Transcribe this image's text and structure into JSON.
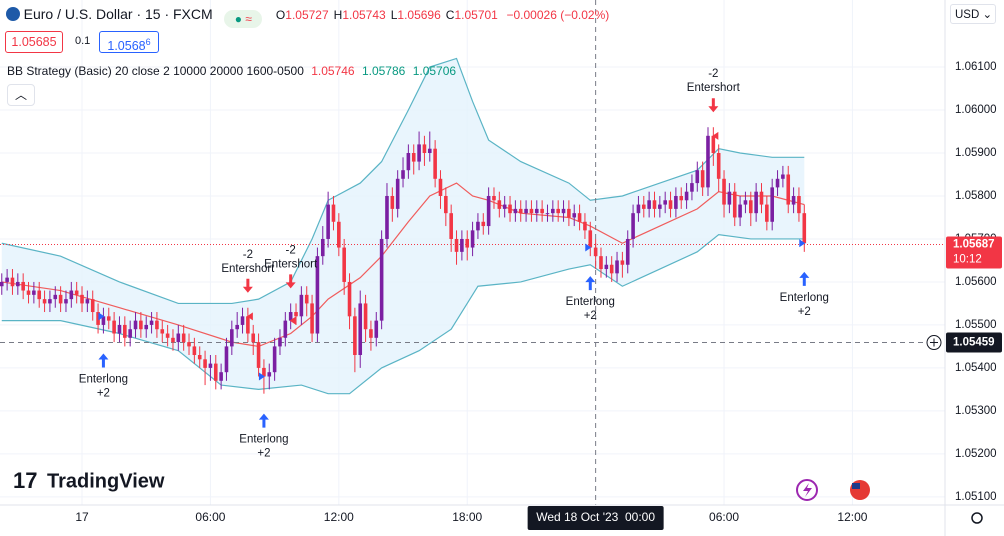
{
  "header": {
    "symbol": "Euro / U.S. Dollar · 15 · FXCM",
    "ohlc": [
      {
        "label": "O",
        "value": "1.05727"
      },
      {
        "label": "H",
        "value": "1.05743"
      },
      {
        "label": "L",
        "value": "1.05696"
      },
      {
        "label": "C",
        "value": "1.05701"
      }
    ],
    "change": "−0.00026 (−0.02%)",
    "bid": "1.05685",
    "spread": "0.1",
    "ask": "1.0568",
    "ask_pip": "6",
    "currency": "USD",
    "indicator": {
      "name": "BB Strategy (Basic) 20 close 2 10000 20000 1600-0500",
      "values": [
        "1.05746",
        "1.05786",
        "1.05706"
      ]
    },
    "logo": "TradingView"
  },
  "chart_data": {
    "type": "candlestick",
    "up_color": "#7b1fa2",
    "down_color": "#f23645",
    "xlim": [
      -0.33,
      176.3
    ],
    "ylim": [
      1.05081,
      1.06256
    ],
    "xticks": [
      {
        "value": 15,
        "label": "17"
      },
      {
        "value": 39,
        "label": "06:00"
      },
      {
        "value": 63,
        "label": "12:00"
      },
      {
        "value": 87,
        "label": "18:00"
      },
      {
        "value": 135,
        "label": "06:00"
      },
      {
        "value": 159,
        "label": "12:00"
      }
    ],
    "yticks": [
      {
        "value": 1.051,
        "label": "1.05100"
      },
      {
        "value": 1.052,
        "label": "1.05200"
      },
      {
        "value": 1.053,
        "label": "1.05300"
      },
      {
        "value": 1.054,
        "label": "1.05400"
      },
      {
        "value": 1.055,
        "label": "1.05500"
      },
      {
        "value": 1.056,
        "label": "1.05600"
      },
      {
        "value": 1.057,
        "label": "1.05700"
      },
      {
        "value": 1.058,
        "label": "1.05800"
      },
      {
        "value": 1.059,
        "label": "1.05900"
      },
      {
        "value": 1.06,
        "label": "1.06000"
      },
      {
        "value": 1.061,
        "label": "1.06100"
      }
    ],
    "grid": true,
    "candles": [
      [
        1.0559,
        1.0562,
        1.0557,
        1.056
      ],
      [
        1.056,
        1.0563,
        1.0558,
        1.0561
      ],
      [
        1.0561,
        1.0563,
        1.0557,
        1.0559
      ],
      [
        1.0559,
        1.0562,
        1.0557,
        1.056
      ],
      [
        1.056,
        1.0562,
        1.0556,
        1.0558
      ],
      [
        1.0558,
        1.056,
        1.0555,
        1.0557
      ],
      [
        1.0557,
        1.056,
        1.0555,
        1.0558
      ],
      [
        1.0558,
        1.056,
        1.0554,
        1.0556
      ],
      [
        1.0556,
        1.0558,
        1.0553,
        1.0555
      ],
      [
        1.0555,
        1.0558,
        1.0553,
        1.0556
      ],
      [
        1.0556,
        1.0559,
        1.0554,
        1.0557
      ],
      [
        1.0557,
        1.0559,
        1.0553,
        1.0555
      ],
      [
        1.0555,
        1.0558,
        1.0553,
        1.0556
      ],
      [
        1.0556,
        1.056,
        1.0554,
        1.0558
      ],
      [
        1.0558,
        1.056,
        1.0555,
        1.0557
      ],
      [
        1.0557,
        1.0559,
        1.0553,
        1.0555
      ],
      [
        1.0555,
        1.0558,
        1.0553,
        1.0556
      ],
      [
        1.0556,
        1.0558,
        1.0551,
        1.0553
      ],
      [
        1.0553,
        1.0555,
        1.0548,
        1.055
      ],
      [
        1.055,
        1.0554,
        1.0548,
        1.0552
      ],
      [
        1.0552,
        1.0554,
        1.0549,
        1.0551
      ],
      [
        1.0551,
        1.0553,
        1.0546,
        1.0548
      ],
      [
        1.0548,
        1.0552,
        1.0546,
        1.055
      ],
      [
        1.055,
        1.0552,
        1.0545,
        1.0547
      ],
      [
        1.0547,
        1.0551,
        1.0545,
        1.0549
      ],
      [
        1.0549,
        1.0553,
        1.0547,
        1.0551
      ],
      [
        1.0551,
        1.0553,
        1.0547,
        1.0549
      ],
      [
        1.0549,
        1.0552,
        1.0547,
        1.055
      ],
      [
        1.055,
        1.0553,
        1.0548,
        1.0551
      ],
      [
        1.0551,
        1.0553,
        1.0547,
        1.0549
      ],
      [
        1.0549,
        1.0551,
        1.0546,
        1.0548
      ],
      [
        1.0548,
        1.055,
        1.0545,
        1.0547
      ],
      [
        1.0547,
        1.0549,
        1.0544,
        1.0546
      ],
      [
        1.0546,
        1.055,
        1.0544,
        1.0548
      ],
      [
        1.0548,
        1.055,
        1.0544,
        1.0546
      ],
      [
        1.0546,
        1.0548,
        1.0543,
        1.0545
      ],
      [
        1.0545,
        1.0547,
        1.0541,
        1.0543
      ],
      [
        1.0543,
        1.0545,
        1.054,
        1.0542
      ],
      [
        1.0542,
        1.0544,
        1.0536,
        1.054
      ],
      [
        1.054,
        1.0543,
        1.0537,
        1.0541
      ],
      [
        1.0541,
        1.0543,
        1.0535,
        1.0537
      ],
      [
        1.0537,
        1.0541,
        1.0535,
        1.0539
      ],
      [
        1.0539,
        1.0547,
        1.0537,
        1.0545
      ],
      [
        1.0545,
        1.0551,
        1.0543,
        1.0549
      ],
      [
        1.0549,
        1.0553,
        1.0547,
        1.055
      ],
      [
        1.055,
        1.0554,
        1.0548,
        1.0552
      ],
      [
        1.0552,
        1.0554,
        1.0546,
        1.0548
      ],
      [
        1.0548,
        1.055,
        1.0543,
        1.0546
      ],
      [
        1.0546,
        1.0548,
        1.0538,
        1.054
      ],
      [
        1.054,
        1.0542,
        1.0534,
        1.0538
      ],
      [
        1.0538,
        1.0541,
        1.0535,
        1.0539
      ],
      [
        1.0539,
        1.0547,
        1.0537,
        1.0545
      ],
      [
        1.0545,
        1.0549,
        1.0543,
        1.0547
      ],
      [
        1.0547,
        1.0553,
        1.0545,
        1.0551
      ],
      [
        1.0551,
        1.0555,
        1.0549,
        1.0553
      ],
      [
        1.0553,
        1.0555,
        1.055,
        1.0552
      ],
      [
        1.0552,
        1.0559,
        1.055,
        1.0557
      ],
      [
        1.0557,
        1.0559,
        1.0552,
        1.0555
      ],
      [
        1.0555,
        1.0557,
        1.0546,
        1.0548
      ],
      [
        1.0548,
        1.0568,
        1.0546,
        1.0566
      ],
      [
        1.0566,
        1.0573,
        1.0564,
        1.057
      ],
      [
        1.057,
        1.0581,
        1.0568,
        1.0578
      ],
      [
        1.0578,
        1.058,
        1.0572,
        1.0574
      ],
      [
        1.0574,
        1.0576,
        1.0566,
        1.0568
      ],
      [
        1.0568,
        1.057,
        1.0557,
        1.056
      ],
      [
        1.056,
        1.0562,
        1.0549,
        1.0552
      ],
      [
        1.0552,
        1.0554,
        1.0539,
        1.0543
      ],
      [
        1.0543,
        1.0558,
        1.054,
        1.0555
      ],
      [
        1.0555,
        1.0557,
        1.0546,
        1.0549
      ],
      [
        1.0549,
        1.0551,
        1.0544,
        1.0547
      ],
      [
        1.0547,
        1.0553,
        1.0545,
        1.0551
      ],
      [
        1.0551,
        1.0572,
        1.0549,
        1.057
      ],
      [
        1.057,
        1.0583,
        1.0568,
        1.058
      ],
      [
        1.058,
        1.0582,
        1.0574,
        1.0577
      ],
      [
        1.0577,
        1.0586,
        1.0575,
        1.0584
      ],
      [
        1.0584,
        1.0589,
        1.0582,
        1.0586
      ],
      [
        1.0586,
        1.0592,
        1.0584,
        1.059
      ],
      [
        1.059,
        1.0592,
        1.0585,
        1.0588
      ],
      [
        1.0588,
        1.0595,
        1.0586,
        1.0592
      ],
      [
        1.0592,
        1.0594,
        1.0587,
        1.059
      ],
      [
        1.059,
        1.0595,
        1.0588,
        1.0591
      ],
      [
        1.0591,
        1.0593,
        1.0582,
        1.0584
      ],
      [
        1.0584,
        1.0586,
        1.0577,
        1.058
      ],
      [
        1.058,
        1.0582,
        1.0573,
        1.0576
      ],
      [
        1.0576,
        1.0578,
        1.0567,
        1.057
      ],
      [
        1.057,
        1.0572,
        1.0564,
        1.0567
      ],
      [
        1.0567,
        1.0572,
        1.0565,
        1.057
      ],
      [
        1.057,
        1.0572,
        1.0565,
        1.0568
      ],
      [
        1.0568,
        1.0574,
        1.0566,
        1.0572
      ],
      [
        1.0572,
        1.0576,
        1.057,
        1.0574
      ],
      [
        1.0574,
        1.0576,
        1.0571,
        1.0573
      ],
      [
        1.0573,
        1.0582,
        1.0571,
        1.058
      ],
      [
        1.058,
        1.0582,
        1.0577,
        1.0579
      ],
      [
        1.0579,
        1.0581,
        1.0575,
        1.0577
      ],
      [
        1.0577,
        1.058,
        1.0575,
        1.0578
      ],
      [
        1.0578,
        1.058,
        1.0574,
        1.0576
      ],
      [
        1.0576,
        1.0579,
        1.0574,
        1.0577
      ],
      [
        1.0577,
        1.0579,
        1.0574,
        1.0576
      ],
      [
        1.0576,
        1.0579,
        1.0574,
        1.0577
      ],
      [
        1.0577,
        1.0579,
        1.0574,
        1.0576
      ],
      [
        1.0576,
        1.0579,
        1.0574,
        1.0577
      ],
      [
        1.0577,
        1.0579,
        1.0574,
        1.0576
      ],
      [
        1.0576,
        1.0578,
        1.0574,
        1.0576
      ],
      [
        1.0576,
        1.0579,
        1.0574,
        1.0577
      ],
      [
        1.0577,
        1.0579,
        1.0574,
        1.0576
      ],
      [
        1.0576,
        1.0579,
        1.0574,
        1.0577
      ],
      [
        1.0577,
        1.0579,
        1.0573,
        1.0575
      ],
      [
        1.0575,
        1.0578,
        1.0573,
        1.0576
      ],
      [
        1.0576,
        1.0578,
        1.0572,
        1.0574
      ],
      [
        1.0574,
        1.0576,
        1.057,
        1.0572
      ],
      [
        1.0572,
        1.0574,
        1.0566,
        1.0568
      ],
      [
        1.0568,
        1.057,
        1.0563,
        1.0566
      ],
      [
        1.0566,
        1.0568,
        1.0561,
        1.0563
      ],
      [
        1.0563,
        1.0566,
        1.0561,
        1.0564
      ],
      [
        1.0564,
        1.0566,
        1.056,
        1.0562
      ],
      [
        1.0562,
        1.0567,
        1.056,
        1.0565
      ],
      [
        1.0565,
        1.0567,
        1.0561,
        1.0564
      ],
      [
        1.0564,
        1.0572,
        1.0562,
        1.057
      ],
      [
        1.057,
        1.0578,
        1.0568,
        1.0576
      ],
      [
        1.0576,
        1.058,
        1.0574,
        1.0578
      ],
      [
        1.0578,
        1.058,
        1.0575,
        1.0577
      ],
      [
        1.0577,
        1.0581,
        1.0575,
        1.0579
      ],
      [
        1.0579,
        1.0581,
        1.0575,
        1.0577
      ],
      [
        1.0577,
        1.058,
        1.0575,
        1.0578
      ],
      [
        1.0578,
        1.0581,
        1.0576,
        1.0579
      ],
      [
        1.0579,
        1.0581,
        1.0575,
        1.0577
      ],
      [
        1.0577,
        1.0582,
        1.0575,
        1.058
      ],
      [
        1.058,
        1.0582,
        1.0577,
        1.0579
      ],
      [
        1.0579,
        1.0583,
        1.0577,
        1.0581
      ],
      [
        1.0581,
        1.0585,
        1.0579,
        1.0583
      ],
      [
        1.0583,
        1.0588,
        1.0581,
        1.0586
      ],
      [
        1.0586,
        1.0588,
        1.058,
        1.0582
      ],
      [
        1.0582,
        1.0596,
        1.058,
        1.0594
      ],
      [
        1.0594,
        1.0596,
        1.0587,
        1.059
      ],
      [
        1.059,
        1.0592,
        1.0581,
        1.0584
      ],
      [
        1.0584,
        1.0586,
        1.0575,
        1.0578
      ],
      [
        1.0578,
        1.0583,
        1.0576,
        1.0581
      ],
      [
        1.0581,
        1.0583,
        1.0573,
        1.0575
      ],
      [
        1.0575,
        1.058,
        1.0573,
        1.0578
      ],
      [
        1.0578,
        1.0581,
        1.0576,
        1.0579
      ],
      [
        1.0579,
        1.0581,
        1.0573,
        1.0576
      ],
      [
        1.0576,
        1.0583,
        1.0574,
        1.0581
      ],
      [
        1.0581,
        1.0583,
        1.0576,
        1.0578
      ],
      [
        1.0578,
        1.058,
        1.0572,
        1.0574
      ],
      [
        1.0574,
        1.0584,
        1.0572,
        1.0582
      ],
      [
        1.0582,
        1.0586,
        1.058,
        1.0584
      ],
      [
        1.0584,
        1.0587,
        1.0582,
        1.0585
      ],
      [
        1.0585,
        1.0587,
        1.0576,
        1.0578
      ],
      [
        1.0578,
        1.0582,
        1.0576,
        1.058
      ],
      [
        1.058,
        1.0582,
        1.0574,
        1.0576
      ],
      [
        1.0576,
        1.0578,
        1.0567,
        1.0569
      ]
    ],
    "bands": [
      {
        "name": "upper",
        "color": "#5ab4c5",
        "x": [
          0,
          11,
          22,
          33,
          43,
          48,
          54,
          58,
          61,
          67,
          71,
          76,
          80,
          85,
          88,
          91,
          97,
          106,
          110,
          116,
          123,
          130,
          134,
          138,
          144,
          150
        ],
        "values": [
          1.0569,
          1.0566,
          1.056,
          1.0555,
          1.0555,
          1.0556,
          1.056,
          1.057,
          1.0579,
          1.0583,
          1.0588,
          1.06,
          1.061,
          1.0612,
          1.0602,
          1.0593,
          1.0588,
          1.0583,
          1.0579,
          1.058,
          1.0583,
          1.0586,
          1.0591,
          1.059,
          1.0589,
          1.0589
        ]
      },
      {
        "name": "basis",
        "color": "#f05c5c",
        "x": [
          0,
          11,
          22,
          33,
          43,
          48,
          54,
          58,
          61,
          67,
          71,
          76,
          80,
          85,
          88,
          91,
          97,
          106,
          110,
          116,
          123,
          130,
          134,
          138,
          144,
          150
        ],
        "values": [
          1.056,
          1.0558,
          1.0554,
          1.055,
          1.0546,
          1.0545,
          1.0548,
          1.0552,
          1.0556,
          1.0561,
          1.0566,
          1.0574,
          1.058,
          1.0583,
          1.058,
          1.0579,
          1.0576,
          1.0575,
          1.0573,
          1.0569,
          1.0573,
          1.0577,
          1.0581,
          1.058,
          1.058,
          1.0578
        ]
      },
      {
        "name": "lower",
        "color": "#5ab4c5",
        "x": [
          0,
          11,
          22,
          33,
          41,
          48,
          56,
          61,
          65,
          71,
          78,
          84,
          89,
          97,
          106,
          110,
          116,
          123,
          130,
          134,
          140,
          150
        ],
        "values": [
          1.0551,
          1.0551,
          1.0548,
          1.0544,
          1.0536,
          1.0535,
          1.0536,
          1.0534,
          1.0534,
          1.054,
          1.0544,
          1.0549,
          1.0559,
          1.056,
          1.0563,
          1.0564,
          1.0559,
          1.0563,
          1.0567,
          1.0571,
          1.057,
          1.057
        ]
      }
    ],
    "band_fill": "#e3f2fd",
    "signals": [
      {
        "bar": 19,
        "label": "Enterlong",
        "qty": "+2"
      },
      {
        "bar": 46,
        "label": "Entershort",
        "qty": "-2"
      },
      {
        "bar": 49,
        "label": "Enterlong",
        "qty": "+2"
      },
      {
        "bar": 54,
        "label": "Entershort",
        "qty": "-2"
      },
      {
        "bar": 110,
        "label": "Enterlong",
        "qty": "+2"
      },
      {
        "bar": 133,
        "label": "Entershort",
        "qty": "-2"
      },
      {
        "bar": 150,
        "label": "Enterlong",
        "qty": "+2"
      }
    ],
    "last_price": 1.05687,
    "countdown": "10:12",
    "crosshair_y": 1.05459,
    "crosshair_x": {
      "value": 111,
      "label": "Wed 18 Oct '23  00:00"
    }
  }
}
